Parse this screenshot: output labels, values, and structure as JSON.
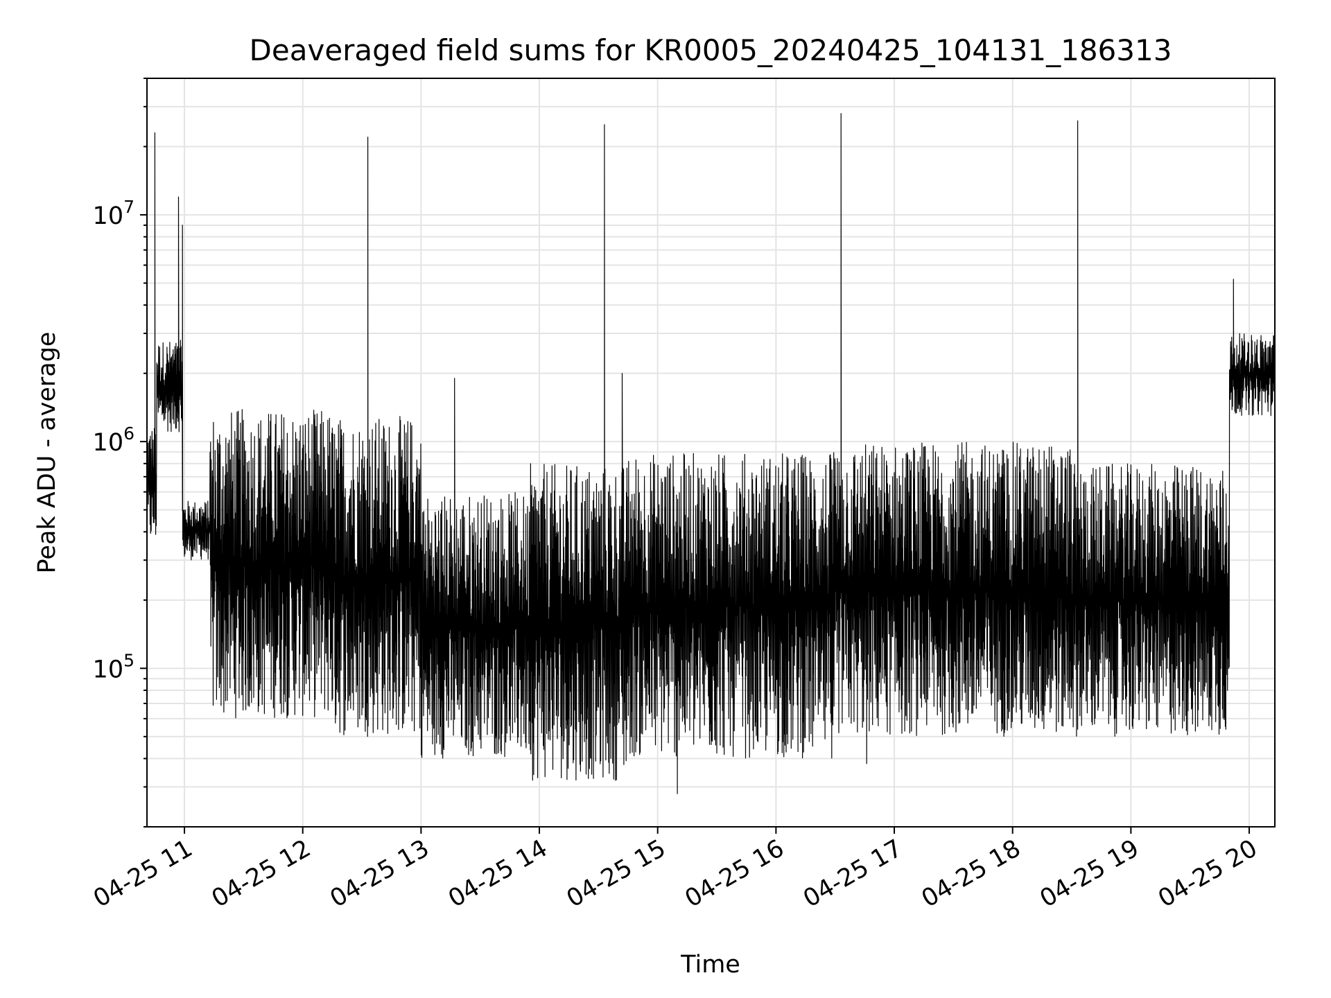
{
  "chart_data": {
    "type": "line",
    "title": "Deaveraged field sums for KR0005_20240425_104131_186313",
    "xlabel": "Time",
    "ylabel": "Peak ADU - average",
    "yscale": "log",
    "grid": true,
    "legend": "none",
    "xlim": [
      "2024-04-25 10:41",
      "2024-04-25 20:13"
    ],
    "ylim": [
      20000,
      40000000
    ],
    "x_ticks": [
      {
        "value": "2024-04-25 11:00",
        "label": "04-25 11"
      },
      {
        "value": "2024-04-25 12:00",
        "label": "04-25 12"
      },
      {
        "value": "2024-04-25 13:00",
        "label": "04-25 13"
      },
      {
        "value": "2024-04-25 14:00",
        "label": "04-25 14"
      },
      {
        "value": "2024-04-25 15:00",
        "label": "04-25 15"
      },
      {
        "value": "2024-04-25 16:00",
        "label": "04-25 16"
      },
      {
        "value": "2024-04-25 17:00",
        "label": "04-25 17"
      },
      {
        "value": "2024-04-25 18:00",
        "label": "04-25 18"
      },
      {
        "value": "2024-04-25 19:00",
        "label": "04-25 19"
      },
      {
        "value": "2024-04-25 20:00",
        "label": "04-25 20"
      }
    ],
    "y_ticks": [
      {
        "value": 100000,
        "base": "10",
        "exp": "5"
      },
      {
        "value": 1000000,
        "base": "10",
        "exp": "6"
      },
      {
        "value": 10000000,
        "base": "10",
        "exp": "7"
      }
    ],
    "line_color": "#000000",
    "segments": [
      {
        "start": "2024-04-25 10:41",
        "end": "2024-04-25 10:46",
        "low": 350000,
        "high": 1200000
      },
      {
        "start": "2024-04-25 10:46",
        "end": "2024-04-25 10:59",
        "low": 1100000,
        "high": 2800000
      },
      {
        "start": "2024-04-25 10:59",
        "end": "2024-04-25 11:13",
        "low": 300000,
        "high": 550000
      },
      {
        "start": "2024-04-25 11:13",
        "end": "2024-04-25 12:15",
        "low": 60000,
        "high": 1400000
      },
      {
        "start": "2024-04-25 12:15",
        "end": "2024-04-25 13:00",
        "low": 50000,
        "high": 1300000
      },
      {
        "start": "2024-04-25 13:00",
        "end": "2024-04-25 13:55",
        "low": 40000,
        "high": 600000
      },
      {
        "start": "2024-04-25 13:55",
        "end": "2024-04-25 14:45",
        "low": 32000,
        "high": 800000
      },
      {
        "start": "2024-04-25 14:45",
        "end": "2024-04-25 16:30",
        "low": 40000,
        "high": 900000
      },
      {
        "start": "2024-04-25 16:30",
        "end": "2024-04-25 18:30",
        "low": 50000,
        "high": 1000000
      },
      {
        "start": "2024-04-25 18:30",
        "end": "2024-04-25 19:50",
        "low": 50000,
        "high": 800000
      },
      {
        "start": "2024-04-25 19:50",
        "end": "2024-04-25 20:13",
        "low": 1300000,
        "high": 3000000
      }
    ],
    "spikes": [
      {
        "x": "2024-04-25 10:45",
        "y": 23000000
      },
      {
        "x": "2024-04-25 10:57",
        "y": 12000000
      },
      {
        "x": "2024-04-25 10:59",
        "y": 9000000
      },
      {
        "x": "2024-04-25 12:33",
        "y": 22000000
      },
      {
        "x": "2024-04-25 13:17",
        "y": 1900000
      },
      {
        "x": "2024-04-25 14:33",
        "y": 25000000
      },
      {
        "x": "2024-04-25 14:42",
        "y": 2000000
      },
      {
        "x": "2024-04-25 16:33",
        "y": 28000000
      },
      {
        "x": "2024-04-25 18:33",
        "y": 26000000
      },
      {
        "x": "2024-04-25 19:52",
        "y": 5200000
      }
    ],
    "dips": [
      {
        "x": "2024-04-25 15:10",
        "y": 28000
      },
      {
        "x": "2024-04-25 16:46",
        "y": 38000
      }
    ]
  }
}
